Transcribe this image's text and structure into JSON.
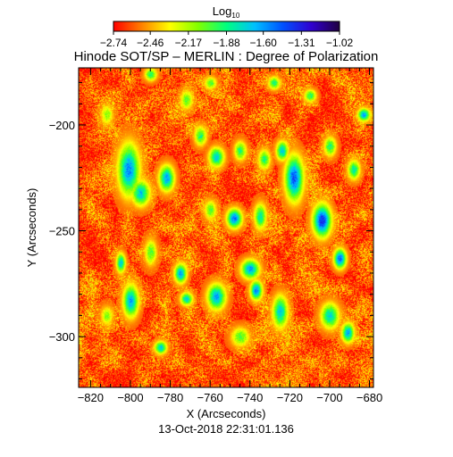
{
  "chart_data": {
    "type": "heatmap",
    "title": "Hinode SOT/SP – MERLIN : Degree of Polarization",
    "xlabel": "X (Arcseconds)",
    "ylabel": "Y (Arcseconds)",
    "timestamp": "13-Oct-2018 22:31:01.136",
    "xlim": [
      -826,
      -678
    ],
    "ylim": [
      -324,
      -173
    ],
    "x_ticks": [
      -820,
      -800,
      -780,
      -760,
      -740,
      -720,
      -700,
      -680
    ],
    "x_tick_labels": [
      "−820",
      "−800",
      "−780",
      "−760",
      "−740",
      "−720",
      "−700",
      "−680"
    ],
    "y_ticks": [
      -300,
      -250,
      -200
    ],
    "y_tick_labels": [
      "−300",
      "−250",
      "−200"
    ],
    "colorbar": {
      "label_base": "Log",
      "label_sub": "10",
      "range": [
        -2.74,
        -1.02
      ],
      "ticks": [
        -2.74,
        -2.46,
        -2.17,
        -1.88,
        -1.6,
        -1.31,
        -1.02
      ],
      "tick_labels": [
        "−2.74",
        "−2.46",
        "−2.17",
        "−1.88",
        "−1.60",
        "−1.31",
        "−1.02"
      ],
      "colormap": [
        "#ff0000",
        "#ff8000",
        "#ffff00",
        "#80ff00",
        "#00ff80",
        "#00c0ff",
        "#0050ff",
        "#3000d0",
        "#200040"
      ]
    },
    "field": {
      "background_level": -2.6,
      "features": [
        {
          "x": -801,
          "y": -221,
          "sx": 3.5,
          "sy": 8,
          "level": -1.55
        },
        {
          "x": -795,
          "y": -232,
          "sx": 3,
          "sy": 4,
          "level": -1.7
        },
        {
          "x": -782,
          "y": -225,
          "sx": 2.5,
          "sy": 4,
          "level": -1.6
        },
        {
          "x": -772,
          "y": -188,
          "sx": 2,
          "sy": 3,
          "level": -2.0
        },
        {
          "x": -765,
          "y": -205,
          "sx": 2,
          "sy": 3,
          "level": -1.9
        },
        {
          "x": -757,
          "y": -215,
          "sx": 2.5,
          "sy": 3,
          "level": -1.7
        },
        {
          "x": -748,
          "y": -244,
          "sx": 2.5,
          "sy": 3,
          "level": -1.5
        },
        {
          "x": -745,
          "y": -212,
          "sx": 2,
          "sy": 3,
          "level": -1.9
        },
        {
          "x": -733,
          "y": -216,
          "sx": 2,
          "sy": 3,
          "level": -1.9
        },
        {
          "x": -724,
          "y": -212,
          "sx": 2,
          "sy": 3,
          "level": -1.7
        },
        {
          "x": -718,
          "y": -225,
          "sx": 3,
          "sy": 7,
          "level": -1.45
        },
        {
          "x": -710,
          "y": -186,
          "sx": 2,
          "sy": 2,
          "level": -1.9
        },
        {
          "x": -704,
          "y": -245,
          "sx": 3,
          "sy": 5,
          "level": -1.35
        },
        {
          "x": -695,
          "y": -263,
          "sx": 2,
          "sy": 3,
          "level": -1.45
        },
        {
          "x": -700,
          "y": -210,
          "sx": 2,
          "sy": 3,
          "level": -1.9
        },
        {
          "x": -683,
          "y": -195,
          "sx": 2,
          "sy": 2,
          "level": -1.6
        },
        {
          "x": -688,
          "y": -221,
          "sx": 2,
          "sy": 3,
          "level": -1.8
        },
        {
          "x": -700,
          "y": -290,
          "sx": 3,
          "sy": 4,
          "level": -1.75
        },
        {
          "x": -691,
          "y": -298,
          "sx": 2,
          "sy": 3,
          "level": -1.6
        },
        {
          "x": -805,
          "y": -265,
          "sx": 1.5,
          "sy": 3,
          "level": -1.7
        },
        {
          "x": -800,
          "y": -283,
          "sx": 2.5,
          "sy": 5,
          "level": -1.6
        },
        {
          "x": -775,
          "y": -270,
          "sx": 2,
          "sy": 3,
          "level": -1.6
        },
        {
          "x": -772,
          "y": -282,
          "sx": 2,
          "sy": 2,
          "level": -1.7
        },
        {
          "x": -757,
          "y": -281,
          "sx": 3,
          "sy": 4,
          "level": -1.6
        },
        {
          "x": -740,
          "y": -268,
          "sx": 3,
          "sy": 3,
          "level": -1.6
        },
        {
          "x": -737,
          "y": -278,
          "sx": 2,
          "sy": 3,
          "level": -1.55
        },
        {
          "x": -725,
          "y": -288,
          "sx": 2.5,
          "sy": 5,
          "level": -1.7
        },
        {
          "x": -785,
          "y": -305,
          "sx": 2,
          "sy": 2,
          "level": -1.7
        },
        {
          "x": -735,
          "y": -243,
          "sx": 2,
          "sy": 4,
          "level": -1.8
        },
        {
          "x": -760,
          "y": -240,
          "sx": 2,
          "sy": 3,
          "level": -2.0
        },
        {
          "x": -790,
          "y": -260,
          "sx": 2,
          "sy": 4,
          "level": -2.0
        },
        {
          "x": -812,
          "y": -195,
          "sx": 2,
          "sy": 3,
          "level": -2.1
        },
        {
          "x": -790,
          "y": -176,
          "sx": 2,
          "sy": 2,
          "level": -1.9
        },
        {
          "x": -760,
          "y": -180,
          "sx": 2,
          "sy": 2,
          "level": -2.0
        },
        {
          "x": -728,
          "y": -180,
          "sx": 2,
          "sy": 2,
          "level": -1.9
        },
        {
          "x": -745,
          "y": -300,
          "sx": 3,
          "sy": 3,
          "level": -2.0
        },
        {
          "x": -812,
          "y": -290,
          "sx": 2,
          "sy": 3,
          "level": -2.1
        }
      ]
    }
  }
}
